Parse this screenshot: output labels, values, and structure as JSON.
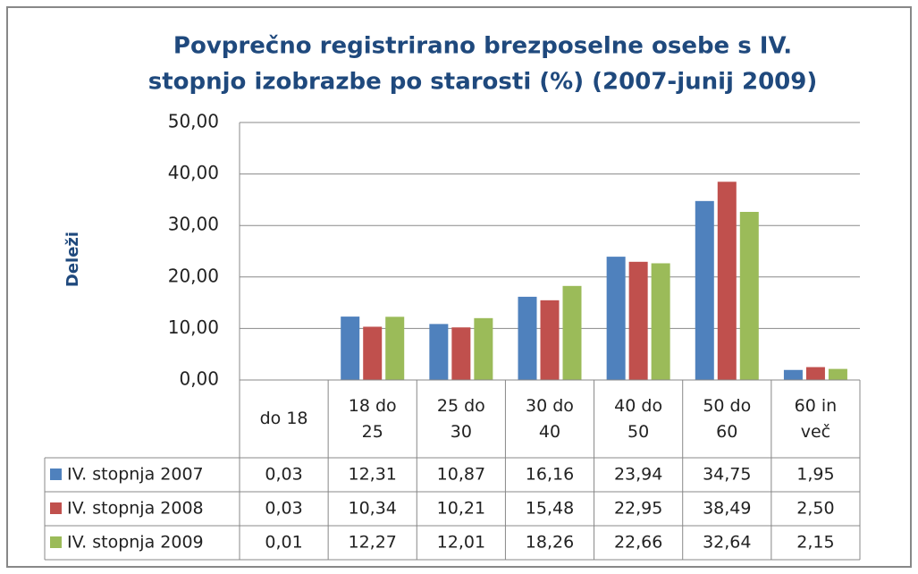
{
  "chart_data": {
    "type": "bar",
    "title": [
      "Povprečno registrirano brezposelne osebe s IV.",
      "stopnjo izobrazbe po starosti (%) (2007-junij 2009)"
    ],
    "y_label": "Deleži",
    "categories": [
      "do 18",
      "18 do 25",
      "25 do 30",
      "30 do 40",
      "40 do 50",
      "50 do 60",
      "60 in več"
    ],
    "series": [
      {
        "name": "IV. stopnja 2007",
        "color": "#4f81bd",
        "values": [
          0.03,
          12.31,
          10.87,
          16.16,
          23.94,
          34.75,
          1.95
        ],
        "value_labels": [
          "0,03",
          "12,31",
          "10,87",
          "16,16",
          "23,94",
          "34,75",
          "1,95"
        ]
      },
      {
        "name": "IV. stopnja 2008",
        "color": "#c0504d",
        "values": [
          0.03,
          10.34,
          10.21,
          15.48,
          22.95,
          38.49,
          2.5
        ],
        "value_labels": [
          "0,03",
          "10,34",
          "10,21",
          "15,48",
          "22,95",
          "38,49",
          "2,50"
        ]
      },
      {
        "name": "IV. stopnja 2009",
        "color": "#9bbb59",
        "values": [
          0.01,
          12.27,
          12.01,
          18.26,
          22.66,
          32.64,
          2.15
        ],
        "value_labels": [
          "0,01",
          "12,27",
          "12,01",
          "18,26",
          "22,66",
          "32,64",
          "2,15"
        ]
      }
    ],
    "ylim": [
      0,
      50
    ],
    "yticks": [
      {
        "value": 0,
        "label": "0,00"
      },
      {
        "value": 10,
        "label": "10,00"
      },
      {
        "value": 20,
        "label": "20,00"
      },
      {
        "value": 30,
        "label": "30,00"
      },
      {
        "value": 40,
        "label": "40,00"
      },
      {
        "value": 50,
        "label": "50,00"
      }
    ],
    "grid": true
  }
}
